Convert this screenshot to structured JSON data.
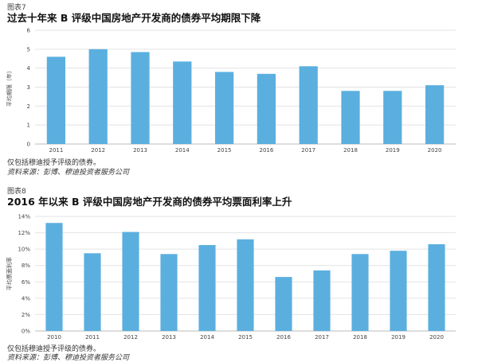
{
  "figures": [
    {
      "label": "图表7",
      "title": "过去十年来 B 评级中国房地产开发商的债券平均期限下降",
      "note": "仅包括穆迪授予评级的债券。",
      "source": "资料来源：彭博、穆迪投资者服务公司"
    },
    {
      "label": "图表8",
      "title": "2016 年以来 B 评级中国房地产开发商的债券平均票面利率上升",
      "note": "仅包括穆迪授予评级的债券。",
      "source": "资料来源：彭博、穆迪投资者服务公司"
    }
  ],
  "chart_data": [
    {
      "type": "bar",
      "categories": [
        "2011",
        "2012",
        "2013",
        "2014",
        "2015",
        "2016",
        "2017",
        "2018",
        "2019",
        "2020"
      ],
      "values": [
        4.6,
        5.0,
        4.85,
        4.35,
        3.8,
        3.7,
        4.1,
        2.8,
        2.8,
        3.1
      ],
      "ylabel": "平均期限（年）",
      "ylim": [
        0,
        6
      ],
      "yticks": [
        0,
        1,
        2,
        3,
        4,
        5,
        6
      ],
      "ytick_labels": [
        "0",
        "1",
        "2",
        "3",
        "4",
        "5",
        "6"
      ],
      "bar_color": "#5aafdf",
      "grid": true
    },
    {
      "type": "bar",
      "categories": [
        "2010",
        "2011",
        "2012",
        "2013",
        "2014",
        "2015",
        "2016",
        "2017",
        "2018",
        "2019",
        "2020"
      ],
      "values": [
        13.2,
        9.5,
        12.1,
        9.4,
        10.5,
        11.2,
        6.6,
        7.4,
        9.4,
        9.8,
        10.6
      ],
      "ylabel": "平均票面利率",
      "ylim": [
        0,
        14
      ],
      "yticks": [
        0,
        2,
        4,
        6,
        8,
        10,
        12,
        14
      ],
      "ytick_labels": [
        "0%",
        "2%",
        "4%",
        "6%",
        "8%",
        "10%",
        "12%",
        "14%"
      ],
      "bar_color": "#5aafdf",
      "grid": true
    }
  ]
}
